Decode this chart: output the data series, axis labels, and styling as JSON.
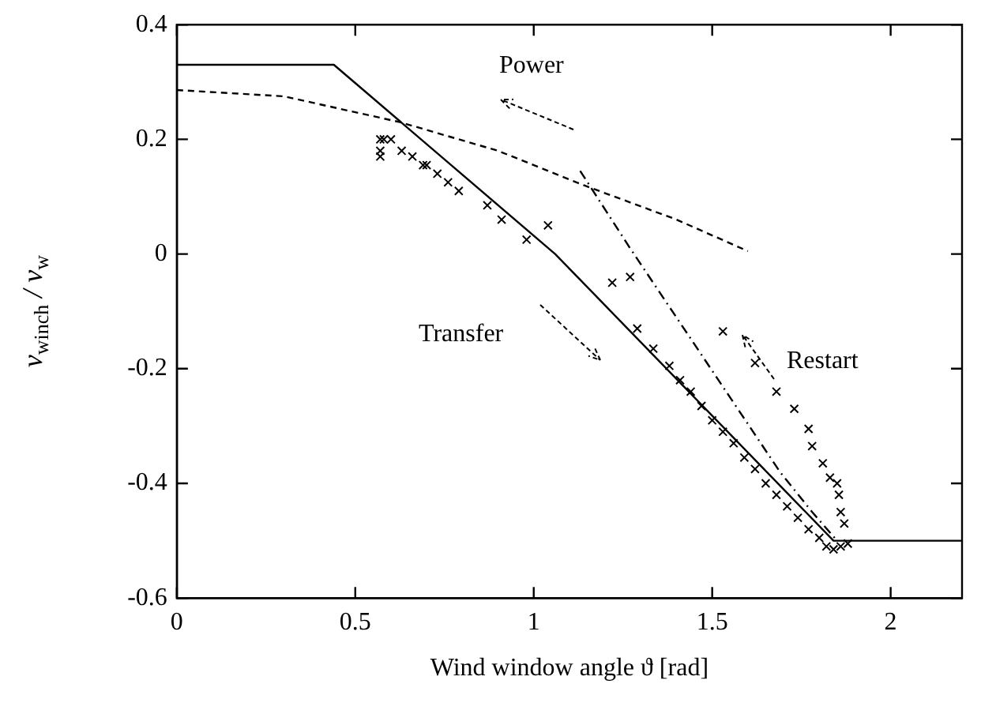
{
  "chart_data": {
    "type": "line",
    "xlabel": "Wind window angle ϑ [rad]",
    "ylabel": "v$_{winch}$ / v$_{w}$",
    "xlim": [
      0,
      2.2
    ],
    "xticks": [
      0,
      0.5,
      1,
      1.5,
      2
    ],
    "ylim": [
      -0.6,
      0.4
    ],
    "yticks": [
      -0.6,
      -0.4,
      -0.2,
      0,
      0.2,
      0.4
    ],
    "grid": false,
    "legend": false,
    "annotations": [
      "Power",
      "Transfer",
      "Restart"
    ],
    "series": [
      {
        "color": "#000000",
        "line_style": "solid",
        "marker": "none",
        "x": [
          0,
          0.44,
          1.06,
          1.84,
          2.2
        ],
        "values": [
          0.33,
          0.33,
          0.0,
          -0.5,
          -0.5
        ]
      },
      {
        "type": "line",
        "color": "#000000",
        "line_style": "dashed",
        "marker": "none",
        "x": [
          0,
          0.3,
          0.625,
          0.9,
          1.14,
          1.4,
          1.6
        ],
        "values": [
          0.286,
          0.275,
          0.23,
          0.18,
          0.12,
          0.06,
          0.005
        ]
      },
      {
        "type": "line",
        "color": "#000000",
        "line_style": "dashdot",
        "marker": "none",
        "x": [
          1.13,
          1.27,
          1.41,
          1.55,
          1.69,
          1.78,
          1.85
        ],
        "values": [
          0.145,
          0.01,
          -0.12,
          -0.25,
          -0.38,
          -0.45,
          -0.5
        ]
      },
      {
        "type": "scatter",
        "color": "#000000",
        "marker": "cross",
        "x": [
          0.57,
          0.57,
          0.57,
          0.58,
          0.6,
          0.63,
          0.66,
          0.69,
          0.7,
          0.73,
          0.76,
          0.79,
          0.87,
          0.91,
          0.98,
          1.04,
          1.22,
          1.27,
          1.29,
          1.335,
          1.38,
          1.41,
          1.44,
          1.47,
          1.5,
          1.53,
          1.56,
          1.59,
          1.62,
          1.65,
          1.68,
          1.71,
          1.74,
          1.77,
          1.8,
          1.82,
          1.84,
          1.86,
          1.88,
          1.87,
          1.86,
          1.855,
          1.85,
          1.83,
          1.81,
          1.78,
          1.77,
          1.73,
          1.68,
          1.62,
          1.53
        ],
        "values": [
          0.2,
          0.18,
          0.17,
          0.2,
          0.2,
          0.18,
          0.17,
          0.155,
          0.155,
          0.14,
          0.125,
          0.11,
          0.085,
          0.06,
          0.025,
          0.05,
          -0.05,
          -0.04,
          -0.13,
          -0.165,
          -0.195,
          -0.22,
          -0.24,
          -0.265,
          -0.29,
          -0.31,
          -0.33,
          -0.355,
          -0.375,
          -0.4,
          -0.42,
          -0.44,
          -0.46,
          -0.48,
          -0.495,
          -0.51,
          -0.515,
          -0.51,
          -0.505,
          -0.47,
          -0.45,
          -0.42,
          -0.4,
          -0.39,
          -0.365,
          -0.335,
          -0.305,
          -0.27,
          -0.24,
          -0.19,
          -0.135
        ]
      }
    ]
  }
}
